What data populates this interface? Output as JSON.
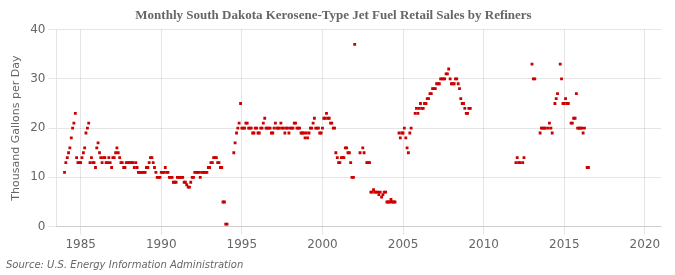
{
  "chart_data": {
    "type": "scatter",
    "title": "Monthly South Dakota Kerosene-Type Jet Fuel Retail Sales by Refiners",
    "ylabel": "Thousand Gallons per Day",
    "source": "Source: U.S. Energy Information Administration",
    "color": "#cc0000",
    "marker": "square",
    "grid": true,
    "xlim": [
      1983.5,
      2021
    ],
    "ylim": [
      0,
      40
    ],
    "xticks": [
      1985,
      1990,
      1995,
      2000,
      2005,
      2010,
      2015,
      2020
    ],
    "yticks": [
      0,
      10,
      20,
      30,
      40
    ],
    "x": [
      1984.0,
      1984.08,
      1984.17,
      1984.25,
      1984.33,
      1984.42,
      1984.5,
      1984.58,
      1984.67,
      1984.75,
      1984.83,
      1984.92,
      1985.0,
      1985.08,
      1985.17,
      1985.25,
      1985.33,
      1985.42,
      1985.5,
      1985.58,
      1985.67,
      1985.75,
      1985.83,
      1985.92,
      1986.0,
      1986.08,
      1986.17,
      1986.25,
      1986.33,
      1986.42,
      1986.5,
      1986.58,
      1986.67,
      1986.75,
      1986.83,
      1986.92,
      1987.0,
      1987.08,
      1987.17,
      1987.25,
      1987.33,
      1987.42,
      1987.5,
      1987.58,
      1987.67,
      1987.75,
      1987.83,
      1987.92,
      1988.0,
      1988.08,
      1988.17,
      1988.25,
      1988.33,
      1988.42,
      1988.5,
      1988.58,
      1988.67,
      1988.75,
      1988.83,
      1988.92,
      1989.0,
      1989.08,
      1989.17,
      1989.25,
      1989.33,
      1989.42,
      1989.5,
      1989.58,
      1989.67,
      1989.75,
      1989.83,
      1989.92,
      1990.0,
      1990.08,
      1990.17,
      1990.25,
      1990.33,
      1990.42,
      1990.5,
      1990.58,
      1990.67,
      1990.75,
      1990.83,
      1990.92,
      1991.0,
      1991.08,
      1991.17,
      1991.25,
      1991.33,
      1991.42,
      1991.5,
      1991.58,
      1991.67,
      1991.75,
      1991.83,
      1991.92,
      1992.0,
      1992.08,
      1992.17,
      1992.25,
      1992.33,
      1992.42,
      1992.5,
      1992.58,
      1992.67,
      1992.75,
      1992.83,
      1992.92,
      1993.0,
      1993.08,
      1993.17,
      1993.25,
      1993.33,
      1993.42,
      1993.5,
      1993.58,
      1993.67,
      1993.75,
      1993.83,
      1993.92,
      1994.0,
      1994.08,
      1994.5,
      1994.58,
      1994.67,
      1994.75,
      1994.83,
      1994.92,
      1995.0,
      1995.08,
      1995.17,
      1995.25,
      1995.33,
      1995.42,
      1995.5,
      1995.58,
      1995.67,
      1995.75,
      1995.83,
      1995.92,
      1996.0,
      1996.08,
      1996.17,
      1996.25,
      1996.33,
      1996.42,
      1996.5,
      1996.58,
      1996.67,
      1996.75,
      1996.83,
      1996.92,
      1997.0,
      1997.08,
      1997.17,
      1997.25,
      1997.33,
      1997.42,
      1997.5,
      1997.58,
      1997.67,
      1997.75,
      1997.83,
      1997.92,
      1998.0,
      1998.08,
      1998.17,
      1998.25,
      1998.33,
      1998.42,
      1998.5,
      1998.58,
      1998.67,
      1998.75,
      1998.83,
      1998.92,
      1999.0,
      1999.08,
      1999.17,
      1999.25,
      1999.33,
      1999.42,
      1999.5,
      1999.58,
      1999.67,
      1999.75,
      1999.83,
      1999.92,
      2000.0,
      2000.08,
      2000.17,
      2000.25,
      2000.33,
      2000.42,
      2000.5,
      2000.58,
      2000.67,
      2000.75,
      2000.83,
      2000.92,
      2001.0,
      2001.08,
      2001.17,
      2001.25,
      2001.33,
      2001.42,
      2001.5,
      2001.58,
      2001.67,
      2001.75,
      2001.83,
      2001.92,
      2002.0,
      2002.33,
      2002.5,
      2002.58,
      2002.75,
      2002.83,
      2002.92,
      2003.0,
      2003.08,
      2003.17,
      2003.25,
      2003.33,
      2003.42,
      2003.5,
      2003.58,
      2003.67,
      2003.75,
      2003.83,
      2003.92,
      2004.0,
      2004.08,
      2004.17,
      2004.25,
      2004.33,
      2004.42,
      2004.5,
      2004.75,
      2004.83,
      2004.92,
      2005.0,
      2005.08,
      2005.17,
      2005.25,
      2005.33,
      2005.42,
      2005.5,
      2005.75,
      2005.83,
      2005.92,
      2006.0,
      2006.08,
      2006.17,
      2006.25,
      2006.33,
      2006.42,
      2006.5,
      2006.58,
      2006.67,
      2006.75,
      2006.83,
      2006.92,
      2007.0,
      2007.08,
      2007.17,
      2007.25,
      2007.33,
      2007.42,
      2007.5,
      2007.58,
      2007.67,
      2007.75,
      2007.83,
      2007.92,
      2008.0,
      2008.08,
      2008.17,
      2008.25,
      2008.33,
      2008.42,
      2008.5,
      2008.58,
      2008.67,
      2008.75,
      2008.83,
      2008.92,
      2009.0,
      2009.08,
      2009.17,
      2012.0,
      2012.08,
      2012.17,
      2012.25,
      2012.42,
      2012.5,
      2013.0,
      2013.08,
      2013.17,
      2013.5,
      2013.58,
      2013.67,
      2013.75,
      2013.83,
      2014.0,
      2014.08,
      2014.17,
      2014.25,
      2014.42,
      2014.5,
      2014.58,
      2014.75,
      2014.83,
      2014.92,
      2015.0,
      2015.08,
      2015.17,
      2015.25,
      2015.42,
      2015.5,
      2015.58,
      2015.67,
      2015.75,
      2015.83,
      2015.92,
      2016.0,
      2016.08,
      2016.17,
      2016.25,
      2016.42,
      2016.5
    ],
    "values": [
      11.0,
      13.0,
      14.0,
      15.0,
      16.0,
      18.0,
      20.0,
      21.0,
      23.0,
      14.0,
      13.0,
      13.0,
      13.0,
      14.0,
      15.0,
      16.0,
      19.0,
      20.0,
      21.0,
      13.0,
      14.0,
      13.0,
      13.0,
      12.0,
      16.0,
      17.0,
      15.0,
      14.0,
      13.0,
      14.0,
      14.0,
      13.0,
      13.0,
      14.0,
      13.0,
      12.0,
      14.0,
      14.0,
      15.0,
      16.0,
      15.0,
      14.0,
      13.0,
      13.0,
      12.0,
      12.0,
      13.0,
      13.0,
      13.0,
      13.0,
      13.0,
      13.0,
      12.0,
      13.0,
      12.0,
      11.0,
      11.0,
      11.0,
      11.0,
      11.0,
      11.0,
      12.0,
      12.0,
      13.0,
      14.0,
      14.0,
      13.0,
      12.0,
      11.0,
      10.0,
      10.0,
      10.0,
      11.0,
      11.0,
      11.0,
      12.0,
      11.0,
      11.0,
      10.0,
      10.0,
      10.0,
      9.0,
      9.0,
      9.0,
      10.0,
      10.0,
      10.0,
      10.0,
      10.0,
      9.0,
      9.0,
      8.5,
      8.0,
      8.0,
      9.0,
      10.0,
      10.0,
      11.0,
      11.0,
      11.0,
      11.0,
      10.0,
      11.0,
      11.0,
      11.0,
      11.0,
      11.0,
      12.0,
      12.0,
      13.0,
      13.0,
      14.0,
      14.0,
      14.0,
      13.0,
      13.0,
      12.0,
      12.0,
      5.0,
      5.0,
      0.5,
      0.5,
      15.0,
      17.0,
      19.0,
      20.0,
      21.0,
      25.0,
      20.0,
      20.0,
      20.0,
      21.0,
      21.0,
      20.0,
      20.0,
      20.0,
      19.0,
      19.0,
      20.0,
      20.0,
      19.0,
      19.0,
      20.0,
      20.0,
      21.0,
      22.0,
      20.0,
      20.0,
      20.0,
      20.0,
      19.0,
      19.0,
      20.0,
      21.0,
      20.0,
      20.0,
      20.0,
      21.0,
      20.0,
      20.0,
      19.0,
      20.0,
      20.0,
      19.0,
      20.0,
      20.0,
      20.0,
      21.0,
      21.0,
      20.0,
      20.0,
      20.0,
      19.0,
      19.0,
      19.0,
      18.0,
      19.0,
      18.0,
      19.0,
      20.0,
      20.0,
      21.0,
      22.0,
      20.0,
      20.0,
      20.0,
      19.0,
      19.0,
      20.0,
      22.0,
      22.0,
      23.0,
      22.0,
      22.0,
      21.0,
      21.0,
      20.0,
      20.0,
      15.0,
      14.0,
      13.0,
      13.0,
      14.0,
      14.0,
      14.0,
      16.0,
      16.0,
      15.0,
      15.0,
      13.0,
      10.0,
      10.0,
      37.0,
      15.0,
      16.0,
      15.0,
      13.0,
      13.0,
      13.0,
      7.0,
      7.0,
      7.5,
      7.0,
      7.0,
      7.0,
      6.5,
      7.0,
      6.0,
      6.5,
      7.0,
      7.0,
      5.0,
      5.0,
      5.0,
      5.5,
      5.0,
      5.0,
      5.0,
      19.0,
      18.0,
      19.0,
      19.0,
      20.0,
      18.0,
      16.0,
      15.0,
      19.0,
      20.0,
      23.0,
      24.0,
      23.0,
      24.0,
      25.0,
      24.0,
      24.0,
      25.0,
      25.0,
      26.0,
      26.0,
      27.0,
      27.0,
      28.0,
      28.0,
      28.0,
      29.0,
      29.0,
      29.0,
      30.0,
      30.0,
      30.0,
      30.0,
      31.0,
      31.0,
      32.0,
      30.0,
      29.0,
      29.0,
      29.0,
      30.0,
      30.0,
      29.0,
      28.0,
      26.0,
      25.0,
      25.0,
      24.0,
      23.0,
      23.0,
      24.0,
      24.0,
      13.0,
      14.0,
      13.0,
      13.0,
      13.0,
      14.0,
      33.0,
      30.0,
      30.0,
      19.0,
      20.0,
      20.0,
      20.0,
      20.0,
      20.0,
      21.0,
      20.0,
      19.0,
      25.0,
      26.0,
      27.0,
      33.0,
      30.0,
      25.0,
      25.0,
      26.0,
      25.0,
      25.0,
      21.0,
      21.0,
      22.0,
      22.0,
      27.0,
      20.0,
      20.0,
      20.0,
      20.0,
      19.0,
      20.0,
      12.0,
      12.0
    ]
  }
}
